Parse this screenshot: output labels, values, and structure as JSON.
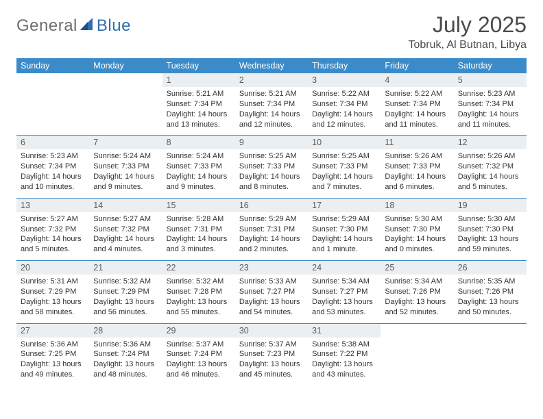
{
  "logo": {
    "part1": "General",
    "part2": "Blue"
  },
  "title": "July 2025",
  "location": "Tobruk, Al Butnan, Libya",
  "colors": {
    "header_bg": "#3b8bc9",
    "header_text": "#ffffff",
    "daynum_bg": "#eceff1",
    "rule": "#3b8bc9",
    "logo_gray": "#6e6e6e",
    "logo_blue": "#2f6fb0"
  },
  "dow": [
    "Sunday",
    "Monday",
    "Tuesday",
    "Wednesday",
    "Thursday",
    "Friday",
    "Saturday"
  ],
  "weeks": [
    [
      {
        "n": "",
        "l1": "",
        "l2": "",
        "l3": "",
        "l4": ""
      },
      {
        "n": "",
        "l1": "",
        "l2": "",
        "l3": "",
        "l4": ""
      },
      {
        "n": "1",
        "l1": "Sunrise: 5:21 AM",
        "l2": "Sunset: 7:34 PM",
        "l3": "Daylight: 14 hours",
        "l4": "and 13 minutes."
      },
      {
        "n": "2",
        "l1": "Sunrise: 5:21 AM",
        "l2": "Sunset: 7:34 PM",
        "l3": "Daylight: 14 hours",
        "l4": "and 12 minutes."
      },
      {
        "n": "3",
        "l1": "Sunrise: 5:22 AM",
        "l2": "Sunset: 7:34 PM",
        "l3": "Daylight: 14 hours",
        "l4": "and 12 minutes."
      },
      {
        "n": "4",
        "l1": "Sunrise: 5:22 AM",
        "l2": "Sunset: 7:34 PM",
        "l3": "Daylight: 14 hours",
        "l4": "and 11 minutes."
      },
      {
        "n": "5",
        "l1": "Sunrise: 5:23 AM",
        "l2": "Sunset: 7:34 PM",
        "l3": "Daylight: 14 hours",
        "l4": "and 11 minutes."
      }
    ],
    [
      {
        "n": "6",
        "l1": "Sunrise: 5:23 AM",
        "l2": "Sunset: 7:34 PM",
        "l3": "Daylight: 14 hours",
        "l4": "and 10 minutes."
      },
      {
        "n": "7",
        "l1": "Sunrise: 5:24 AM",
        "l2": "Sunset: 7:33 PM",
        "l3": "Daylight: 14 hours",
        "l4": "and 9 minutes."
      },
      {
        "n": "8",
        "l1": "Sunrise: 5:24 AM",
        "l2": "Sunset: 7:33 PM",
        "l3": "Daylight: 14 hours",
        "l4": "and 9 minutes."
      },
      {
        "n": "9",
        "l1": "Sunrise: 5:25 AM",
        "l2": "Sunset: 7:33 PM",
        "l3": "Daylight: 14 hours",
        "l4": "and 8 minutes."
      },
      {
        "n": "10",
        "l1": "Sunrise: 5:25 AM",
        "l2": "Sunset: 7:33 PM",
        "l3": "Daylight: 14 hours",
        "l4": "and 7 minutes."
      },
      {
        "n": "11",
        "l1": "Sunrise: 5:26 AM",
        "l2": "Sunset: 7:33 PM",
        "l3": "Daylight: 14 hours",
        "l4": "and 6 minutes."
      },
      {
        "n": "12",
        "l1": "Sunrise: 5:26 AM",
        "l2": "Sunset: 7:32 PM",
        "l3": "Daylight: 14 hours",
        "l4": "and 5 minutes."
      }
    ],
    [
      {
        "n": "13",
        "l1": "Sunrise: 5:27 AM",
        "l2": "Sunset: 7:32 PM",
        "l3": "Daylight: 14 hours",
        "l4": "and 5 minutes."
      },
      {
        "n": "14",
        "l1": "Sunrise: 5:27 AM",
        "l2": "Sunset: 7:32 PM",
        "l3": "Daylight: 14 hours",
        "l4": "and 4 minutes."
      },
      {
        "n": "15",
        "l1": "Sunrise: 5:28 AM",
        "l2": "Sunset: 7:31 PM",
        "l3": "Daylight: 14 hours",
        "l4": "and 3 minutes."
      },
      {
        "n": "16",
        "l1": "Sunrise: 5:29 AM",
        "l2": "Sunset: 7:31 PM",
        "l3": "Daylight: 14 hours",
        "l4": "and 2 minutes."
      },
      {
        "n": "17",
        "l1": "Sunrise: 5:29 AM",
        "l2": "Sunset: 7:30 PM",
        "l3": "Daylight: 14 hours",
        "l4": "and 1 minute."
      },
      {
        "n": "18",
        "l1": "Sunrise: 5:30 AM",
        "l2": "Sunset: 7:30 PM",
        "l3": "Daylight: 14 hours",
        "l4": "and 0 minutes."
      },
      {
        "n": "19",
        "l1": "Sunrise: 5:30 AM",
        "l2": "Sunset: 7:30 PM",
        "l3": "Daylight: 13 hours",
        "l4": "and 59 minutes."
      }
    ],
    [
      {
        "n": "20",
        "l1": "Sunrise: 5:31 AM",
        "l2": "Sunset: 7:29 PM",
        "l3": "Daylight: 13 hours",
        "l4": "and 58 minutes."
      },
      {
        "n": "21",
        "l1": "Sunrise: 5:32 AM",
        "l2": "Sunset: 7:29 PM",
        "l3": "Daylight: 13 hours",
        "l4": "and 56 minutes."
      },
      {
        "n": "22",
        "l1": "Sunrise: 5:32 AM",
        "l2": "Sunset: 7:28 PM",
        "l3": "Daylight: 13 hours",
        "l4": "and 55 minutes."
      },
      {
        "n": "23",
        "l1": "Sunrise: 5:33 AM",
        "l2": "Sunset: 7:27 PM",
        "l3": "Daylight: 13 hours",
        "l4": "and 54 minutes."
      },
      {
        "n": "24",
        "l1": "Sunrise: 5:34 AM",
        "l2": "Sunset: 7:27 PM",
        "l3": "Daylight: 13 hours",
        "l4": "and 53 minutes."
      },
      {
        "n": "25",
        "l1": "Sunrise: 5:34 AM",
        "l2": "Sunset: 7:26 PM",
        "l3": "Daylight: 13 hours",
        "l4": "and 52 minutes."
      },
      {
        "n": "26",
        "l1": "Sunrise: 5:35 AM",
        "l2": "Sunset: 7:26 PM",
        "l3": "Daylight: 13 hours",
        "l4": "and 50 minutes."
      }
    ],
    [
      {
        "n": "27",
        "l1": "Sunrise: 5:36 AM",
        "l2": "Sunset: 7:25 PM",
        "l3": "Daylight: 13 hours",
        "l4": "and 49 minutes."
      },
      {
        "n": "28",
        "l1": "Sunrise: 5:36 AM",
        "l2": "Sunset: 7:24 PM",
        "l3": "Daylight: 13 hours",
        "l4": "and 48 minutes."
      },
      {
        "n": "29",
        "l1": "Sunrise: 5:37 AM",
        "l2": "Sunset: 7:24 PM",
        "l3": "Daylight: 13 hours",
        "l4": "and 46 minutes."
      },
      {
        "n": "30",
        "l1": "Sunrise: 5:37 AM",
        "l2": "Sunset: 7:23 PM",
        "l3": "Daylight: 13 hours",
        "l4": "and 45 minutes."
      },
      {
        "n": "31",
        "l1": "Sunrise: 5:38 AM",
        "l2": "Sunset: 7:22 PM",
        "l3": "Daylight: 13 hours",
        "l4": "and 43 minutes."
      },
      {
        "n": "",
        "l1": "",
        "l2": "",
        "l3": "",
        "l4": ""
      },
      {
        "n": "",
        "l1": "",
        "l2": "",
        "l3": "",
        "l4": ""
      }
    ]
  ]
}
